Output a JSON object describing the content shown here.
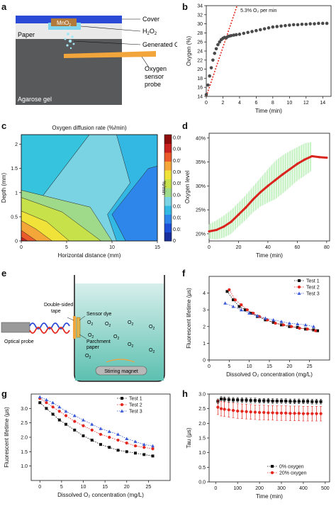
{
  "panel_labels": [
    "a",
    "b",
    "c",
    "d",
    "e",
    "f",
    "g",
    "h"
  ],
  "panel_a": {
    "labels": [
      "Cover",
      "H2O2",
      "Generated O2",
      "Oxygen sensor probe",
      "Paper",
      "Agarose gel",
      "MnO2"
    ],
    "h2o2_base": "H",
    "h2o2_sub1": "2",
    "h2o2_mid": "O",
    "h2o2_sub2": "2",
    "mno2_base": "MnO",
    "mno2_sub": "2",
    "gen_base": "Generated O",
    "gen_sub": "2",
    "probe_line1": "Oxygen",
    "probe_line2": "sensor",
    "probe_line3": "probe",
    "cover": "Cover",
    "paper": "Paper",
    "agarose": "Agarose gel"
  },
  "panel_e": {
    "tape_line1": "Double-sided",
    "tape_line2": "tape",
    "dye": "Sensor dye",
    "parch_line1": "Parchment",
    "parch_line2": "paper",
    "optical": "Optical probe",
    "stir": "Stirring magnet",
    "o2_base": "O",
    "o2_sub": "2"
  },
  "chart_data": [
    {
      "panel": "b",
      "type": "scatter",
      "xlabel": "Time (min)",
      "ylabel": "Oxygen (%)",
      "xlim": [
        0,
        15
      ],
      "ylim": [
        14,
        34
      ],
      "xticks": [
        0,
        2,
        4,
        6,
        8,
        10,
        12,
        14
      ],
      "yticks": [
        14,
        16,
        18,
        20,
        22,
        24,
        26,
        28,
        30,
        32,
        34
      ],
      "annotation": "5.3% O₂ per min",
      "fit_line": {
        "x": [
          0,
          3.7
        ],
        "y": [
          14,
          34
        ]
      },
      "series": [
        {
          "x": [
            0,
            0.2,
            0.4,
            0.6,
            0.8,
            1.0,
            1.2,
            1.4,
            1.6,
            1.8,
            2.0,
            2.2,
            2.4,
            2.6,
            2.8,
            3.0,
            3.3,
            3.6,
            4.0,
            4.5,
            5,
            5.5,
            6,
            6.5,
            7,
            7.5,
            8,
            8.5,
            9,
            9.5,
            10,
            10.5,
            11,
            11.5,
            12,
            12.5,
            13,
            13.5,
            14,
            14.5
          ],
          "y": [
            14.4,
            16.5,
            18.5,
            20.3,
            22.0,
            23.5,
            24.5,
            25.4,
            26.0,
            26.5,
            26.8,
            27.0,
            26.9,
            27.2,
            27.3,
            27.4,
            27.5,
            27.6,
            27.7,
            27.9,
            28.1,
            28.3,
            28.5,
            28.7,
            28.9,
            29.1,
            29.3,
            29.4,
            29.5,
            29.6,
            29.7,
            29.8,
            29.8,
            29.9,
            29.9,
            30.0,
            30.0,
            30.1,
            30.1,
            30.1
          ]
        }
      ]
    },
    {
      "panel": "c",
      "type": "heatmap",
      "title": "Oxygen diffusion rate (%/min)",
      "xlabel": "Horizontal distance (mm)",
      "ylabel": "Depth (mm)",
      "colorbar_label": "%/min",
      "xlim": [
        0,
        15
      ],
      "ylim": [
        0,
        2.2
      ],
      "xticks": [
        0,
        5,
        10,
        15
      ],
      "yticks": [
        0,
        0.5,
        1,
        1.5,
        2
      ],
      "colorbar_ticks": [
        0,
        0.01,
        0.02,
        0.03,
        0.04,
        0.05,
        0.06,
        0.07,
        0.08,
        0.09
      ]
    },
    {
      "panel": "d",
      "type": "line",
      "xlabel": "Time (min)",
      "ylabel": "Oxygen level",
      "xlim": [
        0,
        82
      ],
      "ylim": [
        18.5,
        41
      ],
      "xticks": [
        0,
        20,
        40,
        60,
        80
      ],
      "yticks": [
        "20%",
        "25%",
        "30%",
        "35%",
        "40%"
      ],
      "ytick_values": [
        20,
        25,
        30,
        35,
        40
      ],
      "series": [
        {
          "x": [
            0,
            5,
            10,
            15,
            20,
            25,
            30,
            35,
            40,
            45,
            50,
            55,
            60,
            65,
            70,
            75,
            80
          ],
          "y": [
            20.5,
            20.8,
            21.5,
            22.5,
            24,
            25.5,
            27.2,
            28.7,
            30,
            31.2,
            32.4,
            33.5,
            34.6,
            35.5,
            36.2,
            36.0,
            35.9
          ]
        }
      ],
      "error_band": [
        1.5,
        2.0,
        2.3,
        2.5,
        2.5,
        2.6,
        2.7,
        3.0,
        3.5,
        4.0,
        4.0,
        3.8,
        3.5,
        3.4,
        3.0,
        0.8,
        0.5
      ]
    },
    {
      "panel": "f",
      "type": "scatter",
      "xlabel": "Dissolved O₂ concentration (mg/L)",
      "ylabel": "Fluorescent lifetime (μs)",
      "xlim": [
        0,
        30
      ],
      "ylim": [
        0,
        5
      ],
      "xticks": [
        0,
        5,
        10,
        15,
        20,
        25
      ],
      "yticks": [
        0,
        1,
        2,
        3,
        4
      ],
      "series": [
        {
          "name": "Test 1",
          "color": "#111111",
          "x": [
            4.5,
            6,
            7.5,
            9,
            10.5,
            12,
            14,
            16,
            18,
            20,
            22,
            24,
            26,
            27
          ],
          "y": [
            4.1,
            3.6,
            3.2,
            3.0,
            2.8,
            2.6,
            2.4,
            2.25,
            2.1,
            2.0,
            1.95,
            1.85,
            1.8,
            1.75
          ]
        },
        {
          "name": "Test 2",
          "color": "#e3271f",
          "x": [
            5,
            6.5,
            8,
            9.5,
            11,
            12.5,
            14.5,
            16.5,
            18.5,
            20.5,
            22.5,
            24.5,
            26.5
          ],
          "y": [
            4.2,
            3.6,
            3.3,
            3.0,
            2.8,
            2.6,
            2.4,
            2.2,
            2.1,
            2.0,
            1.9,
            1.85,
            1.75
          ]
        },
        {
          "name": "Test 3",
          "color": "#3b5bd6",
          "x": [
            4,
            6,
            8,
            10,
            12,
            14,
            16,
            18,
            20,
            22,
            24,
            26
          ],
          "y": [
            3.4,
            3.2,
            3.0,
            2.8,
            2.65,
            2.5,
            2.4,
            2.3,
            2.2,
            2.15,
            2.1,
            2.0
          ]
        }
      ]
    },
    {
      "panel": "g",
      "type": "scatter",
      "xlabel": "Dissolved O₂ concentration (mg/L)",
      "ylabel": "Fluorescent lifetime (μs)",
      "xlim": [
        -2,
        30
      ],
      "ylim": [
        0.5,
        3.5
      ],
      "xticks": [
        0,
        5,
        10,
        15,
        20,
        25
      ],
      "yticks": [
        1.0,
        1.5,
        2.0,
        2.5,
        3.0
      ],
      "series": [
        {
          "name": "Test 1",
          "color": "#111111",
          "x": [
            0,
            1.5,
            3,
            4.5,
            6,
            8,
            10,
            12,
            14,
            16,
            18,
            20,
            22,
            24,
            26
          ],
          "y": [
            3.2,
            3.0,
            2.8,
            2.6,
            2.45,
            2.25,
            2.05,
            1.9,
            1.75,
            1.65,
            1.55,
            1.5,
            1.45,
            1.4,
            1.35
          ]
        },
        {
          "name": "Test 2",
          "color": "#e3271f",
          "x": [
            0,
            1.5,
            3,
            4.5,
            6,
            8,
            10,
            12,
            14,
            16,
            18,
            20,
            22,
            24,
            26
          ],
          "y": [
            3.35,
            3.2,
            3.05,
            2.9,
            2.75,
            2.55,
            2.4,
            2.25,
            2.1,
            2.0,
            1.9,
            1.8,
            1.7,
            1.65,
            1.6
          ]
        },
        {
          "name": "Test 3",
          "color": "#3b5bd6",
          "x": [
            0,
            1.5,
            3,
            4.5,
            6,
            8,
            10,
            12,
            14,
            16,
            18,
            20,
            22,
            24,
            26
          ],
          "y": [
            3.4,
            3.3,
            3.2,
            3.05,
            2.9,
            2.75,
            2.6,
            2.45,
            2.3,
            2.2,
            2.1,
            1.95,
            1.85,
            1.75,
            1.7
          ]
        }
      ]
    },
    {
      "panel": "h",
      "type": "scatter",
      "xlabel": "Time (min)",
      "ylabel": "Tau (μs)",
      "xlim": [
        -30,
        520
      ],
      "ylim": [
        0,
        3.0
      ],
      "xticks": [
        0,
        100,
        200,
        300,
        400,
        500
      ],
      "yticks": [
        0,
        0.5,
        1.0,
        1.5,
        2.0,
        2.5,
        3.0
      ],
      "series": [
        {
          "name": "0% oxygen",
          "color": "#111111",
          "x": [
            10,
            25,
            40,
            60,
            80,
            100,
            120,
            140,
            160,
            180,
            200,
            220,
            240,
            260,
            280,
            300,
            320,
            340,
            360,
            380,
            400,
            420,
            440,
            460,
            480
          ],
          "y": [
            2.75,
            2.83,
            2.82,
            2.81,
            2.8,
            2.8,
            2.79,
            2.79,
            2.78,
            2.78,
            2.77,
            2.77,
            2.77,
            2.76,
            2.76,
            2.76,
            2.76,
            2.75,
            2.75,
            2.75,
            2.75,
            2.75,
            2.74,
            2.74,
            2.74
          ],
          "err": 0.08
        },
        {
          "name": "20% oxygen",
          "color": "#e3271f",
          "x": [
            10,
            25,
            40,
            60,
            80,
            100,
            120,
            140,
            160,
            180,
            200,
            220,
            240,
            260,
            280,
            300,
            320,
            340,
            360,
            380,
            400,
            420,
            440,
            460,
            480
          ],
          "y": [
            2.55,
            2.5,
            2.48,
            2.46,
            2.44,
            2.42,
            2.41,
            2.4,
            2.39,
            2.38,
            2.37,
            2.37,
            2.36,
            2.36,
            2.35,
            2.35,
            2.35,
            2.34,
            2.34,
            2.34,
            2.33,
            2.33,
            2.33,
            2.33,
            2.33
          ],
          "err": 0.25
        }
      ]
    }
  ]
}
